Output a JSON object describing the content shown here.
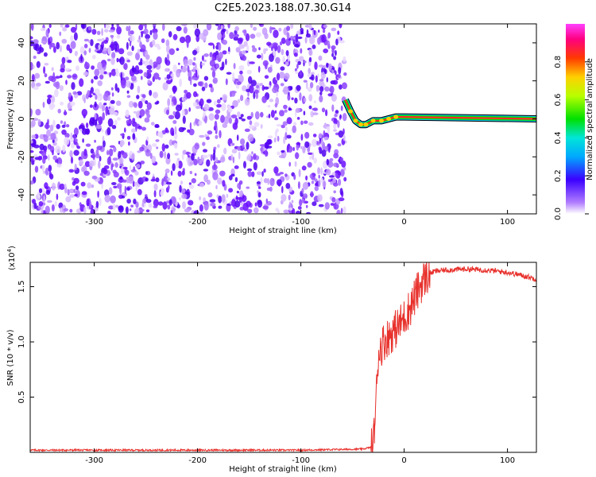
{
  "title": "C2E5.2023.188.07.30.G14",
  "colors": {
    "snr_line": "#e8312c",
    "spectrum_hot": "#e8312c",
    "spectrum_cold": "#6a0dff",
    "axis": "#000000"
  },
  "chart_data": [
    {
      "type": "heatmap",
      "xlabel": "Height of straight line (km)",
      "ylabel": "Frequency (Hz)",
      "xlim": [
        -362,
        128
      ],
      "ylim": [
        -50,
        50
      ],
      "xticks": [
        -300,
        -200,
        -100,
        0,
        100
      ],
      "yticks": [
        -40,
        -20,
        0,
        20,
        40
      ],
      "noise_region_x": [
        -362,
        -57
      ],
      "transition_track": [
        {
          "x": -57,
          "y": 10
        },
        {
          "x": -52,
          "y": 4
        },
        {
          "x": -47,
          "y": -1
        },
        {
          "x": -42,
          "y": -3
        },
        {
          "x": -37,
          "y": -3
        },
        {
          "x": -30,
          "y": -1
        },
        {
          "x": -22,
          "y": -1
        },
        {
          "x": -15,
          "y": 0
        },
        {
          "x": -8,
          "y": 1
        },
        {
          "x": 0,
          "y": 1
        },
        {
          "x": 128,
          "y": 0
        }
      ],
      "colorbar": {
        "label": "Normalized spectral amplitude",
        "range": [
          0.0,
          1.0
        ],
        "ticks": [
          0.0,
          0.2,
          0.4,
          0.6,
          0.8
        ]
      }
    },
    {
      "type": "line",
      "xlabel": "Height of straight line (km)",
      "ylabel": "SNR (10 * v/v)",
      "multiplier": "(x10^4)",
      "multiplier_base": "(x10",
      "multiplier_exp": "4",
      "multiplier_close": ")",
      "xlim": [
        -362,
        128
      ],
      "ylim": [
        0,
        1.72
      ],
      "xticks": [
        -300,
        -200,
        -100,
        0,
        100
      ],
      "yticks": [
        0.5,
        1.0,
        1.5
      ],
      "ytick_labels": [
        "0.5",
        "1.0",
        "1.5"
      ],
      "series": [
        {
          "x": [
            -362,
            -300,
            -200,
            -100,
            -40,
            -30,
            -27,
            -25,
            -20,
            -15,
            -10,
            -5,
            0,
            5,
            10,
            15,
            20,
            25,
            30,
            40,
            60,
            80,
            100,
            115,
            128
          ],
          "y": [
            0.02,
            0.02,
            0.02,
            0.02,
            0.03,
            0.05,
            0.5,
            0.9,
            1.0,
            1.05,
            1.1,
            1.15,
            1.22,
            1.3,
            1.4,
            1.5,
            1.58,
            1.62,
            1.64,
            1.65,
            1.66,
            1.65,
            1.63,
            1.6,
            1.57
          ]
        }
      ]
    }
  ]
}
